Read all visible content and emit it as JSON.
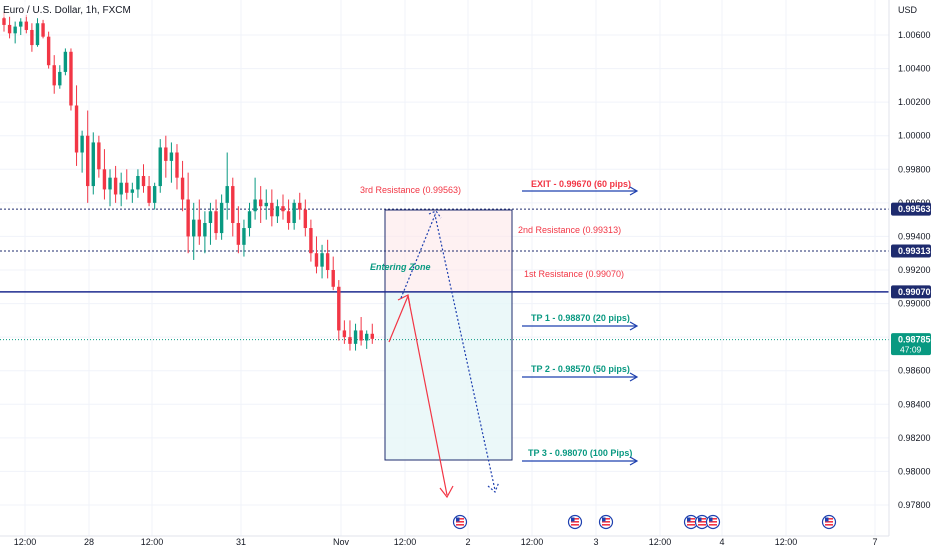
{
  "header": {
    "symbol_title": "Euro / U.S. Dollar, 1h, FXCM"
  },
  "colors": {
    "up": "#089981",
    "down": "#f23645",
    "grid": "#f0f3fa",
    "resistance_line": "#1e2b6e",
    "entry_line": "#1e2b8f",
    "price_tag": "#089981",
    "tag_dark": "#1e2b6e",
    "red_text": "#f23645",
    "teal_text": "#089981",
    "arrow_blue": "#1e40af"
  },
  "chart_data": {
    "type": "candlestick",
    "title": "Euro / U.S. Dollar, 1h, FXCM",
    "currency_label": "USD",
    "ylim": [
      0.9766,
      1.0075
    ],
    "y_ticks": [
      "1.00600",
      "1.00400",
      "1.00200",
      "1.00000",
      "0.99800",
      "0.99600",
      "0.99400",
      "0.99200",
      "0.99000",
      "0.98800",
      "0.98600",
      "0.98400",
      "0.98200",
      "0.98000",
      "0.97800"
    ],
    "x_tick_labels": [
      "12:00",
      "28",
      "12:00",
      "31",
      "Nov",
      "12:00",
      "2",
      "12:00",
      "3",
      "12:00",
      "4",
      "12:00",
      "7"
    ],
    "candles_ohlc": [
      [
        1.007,
        1.0074,
        1.0062,
        1.0066
      ],
      [
        1.0066,
        1.0071,
        1.0058,
        1.0061
      ],
      [
        1.0061,
        1.0068,
        1.0055,
        1.0065
      ],
      [
        1.0065,
        1.007,
        1.006,
        1.0068
      ],
      [
        1.0068,
        1.0072,
        1.0061,
        1.0063
      ],
      [
        1.0063,
        1.0067,
        1.005,
        1.0054
      ],
      [
        1.0054,
        1.007,
        1.0053,
        1.0067
      ],
      [
        1.0067,
        1.0069,
        1.0058,
        1.0059
      ],
      [
        1.0059,
        1.0062,
        1.004,
        1.0042
      ],
      [
        1.0042,
        1.0048,
        1.0025,
        1.003
      ],
      [
        1.003,
        1.0042,
        1.0028,
        1.0038
      ],
      [
        1.0038,
        1.0052,
        1.0036,
        1.005
      ],
      [
        1.005,
        1.0052,
        1.0015,
        1.0018
      ],
      [
        1.0018,
        1.003,
        0.9982,
        0.999
      ],
      [
        0.999,
        1.0003,
        0.9978,
        1.0
      ],
      [
        1.0,
        1.0015,
        0.996,
        0.997
      ],
      [
        0.997,
        1.0002,
        0.9965,
        0.9996
      ],
      [
        0.9996,
        1.0,
        0.9975,
        0.998
      ],
      [
        0.998,
        0.9992,
        0.9962,
        0.9968
      ],
      [
        0.9968,
        0.998,
        0.9958,
        0.9975
      ],
      [
        0.9975,
        0.9982,
        0.996,
        0.9965
      ],
      [
        0.9965,
        0.9978,
        0.9958,
        0.9972
      ],
      [
        0.9972,
        0.998,
        0.9962,
        0.9966
      ],
      [
        0.9966,
        0.9972,
        0.996,
        0.9968
      ],
      [
        0.9968,
        0.998,
        0.9963,
        0.9976
      ],
      [
        0.9976,
        0.9983,
        0.9966,
        0.997
      ],
      [
        0.997,
        0.9976,
        0.9958,
        0.996
      ],
      [
        0.996,
        0.9972,
        0.9956,
        0.997
      ],
      [
        0.997,
        0.9998,
        0.9966,
        0.9993
      ],
      [
        0.9993,
        1.0,
        0.9975,
        0.9985
      ],
      [
        0.9985,
        0.9996,
        0.9972,
        0.999
      ],
      [
        0.999,
        0.9995,
        0.9968,
        0.9975
      ],
      [
        0.9975,
        0.9985,
        0.9955,
        0.9962
      ],
      [
        0.9962,
        0.9978,
        0.993,
        0.994
      ],
      [
        0.994,
        0.996,
        0.9926,
        0.995
      ],
      [
        0.995,
        0.9962,
        0.9935,
        0.994
      ],
      [
        0.994,
        0.9955,
        0.993,
        0.9948
      ],
      [
        0.9948,
        0.996,
        0.9935,
        0.9955
      ],
      [
        0.9955,
        0.9962,
        0.9938,
        0.9942
      ],
      [
        0.9942,
        0.9965,
        0.9938,
        0.996
      ],
      [
        0.996,
        0.999,
        0.995,
        0.997
      ],
      [
        0.997,
        0.9975,
        0.994,
        0.9948
      ],
      [
        0.9948,
        0.9958,
        0.993,
        0.9935
      ],
      [
        0.9935,
        0.995,
        0.9928,
        0.9945
      ],
      [
        0.9945,
        0.996,
        0.994,
        0.9955
      ],
      [
        0.9955,
        0.9975,
        0.995,
        0.9962
      ],
      [
        0.9962,
        0.997,
        0.9948,
        0.9958
      ],
      [
        0.9958,
        0.9968,
        0.995,
        0.996
      ],
      [
        0.996,
        0.9968,
        0.9946,
        0.9952
      ],
      [
        0.9952,
        0.9962,
        0.9948,
        0.9958
      ],
      [
        0.9958,
        0.9965,
        0.995,
        0.9955
      ],
      [
        0.9955,
        0.9962,
        0.9944,
        0.9948
      ],
      [
        0.9948,
        0.9962,
        0.9944,
        0.996
      ],
      [
        0.996,
        0.9966,
        0.995,
        0.9956
      ],
      [
        0.9956,
        0.9962,
        0.994,
        0.9945
      ],
      [
        0.9945,
        0.995,
        0.9925,
        0.993
      ],
      [
        0.993,
        0.994,
        0.9918,
        0.9922
      ],
      [
        0.9922,
        0.9935,
        0.9915,
        0.993
      ],
      [
        0.993,
        0.9938,
        0.9915,
        0.992
      ],
      [
        0.992,
        0.9928,
        0.9908,
        0.991
      ],
      [
        0.991,
        0.9914,
        0.9878,
        0.9884
      ],
      [
        0.9884,
        0.989,
        0.9876,
        0.988
      ],
      [
        0.988,
        0.989,
        0.9872,
        0.9876
      ],
      [
        0.9876,
        0.9888,
        0.9872,
        0.9884
      ],
      [
        0.9884,
        0.9892,
        0.9875,
        0.9878
      ],
      [
        0.9878,
        0.9884,
        0.9873,
        0.9882
      ],
      [
        0.9882,
        0.9888,
        0.9876,
        0.9879
      ]
    ],
    "levels": [
      {
        "name": "2nd/3rd Resistance line",
        "value": 0.99563,
        "tag": "0.99563",
        "style": "dotted"
      },
      {
        "name": "2nd Resistance line",
        "value": 0.99313,
        "tag": "0.99313",
        "style": "dotted"
      },
      {
        "name": "1st Resistance line",
        "value": 0.9907,
        "tag": "0.99070",
        "style": "solid"
      },
      {
        "name": "Last price",
        "value": 0.98785,
        "tag": "0.98785",
        "sub": "47:09",
        "style": "dotted"
      }
    ],
    "annotations": {
      "third_resistance": "3rd Resistance (0.99563)",
      "second_resistance": "2nd Resistance (0.99313)",
      "first_resistance": "1st Resistance (0.99070)",
      "entering_zone": "Entering Zone",
      "exit": "EXIT - 0.99670 (60 pips)",
      "tp1": "TP 1 - 0.98870 (20 pips)",
      "tp2": "TP 2 - 0.98570 (50 pips)",
      "tp3": "TP 3 - 0.98070 (100 Pips)"
    },
    "position_box": {
      "top": 0.99563,
      "entry": 0.9907,
      "bottom": 0.9808
    }
  }
}
